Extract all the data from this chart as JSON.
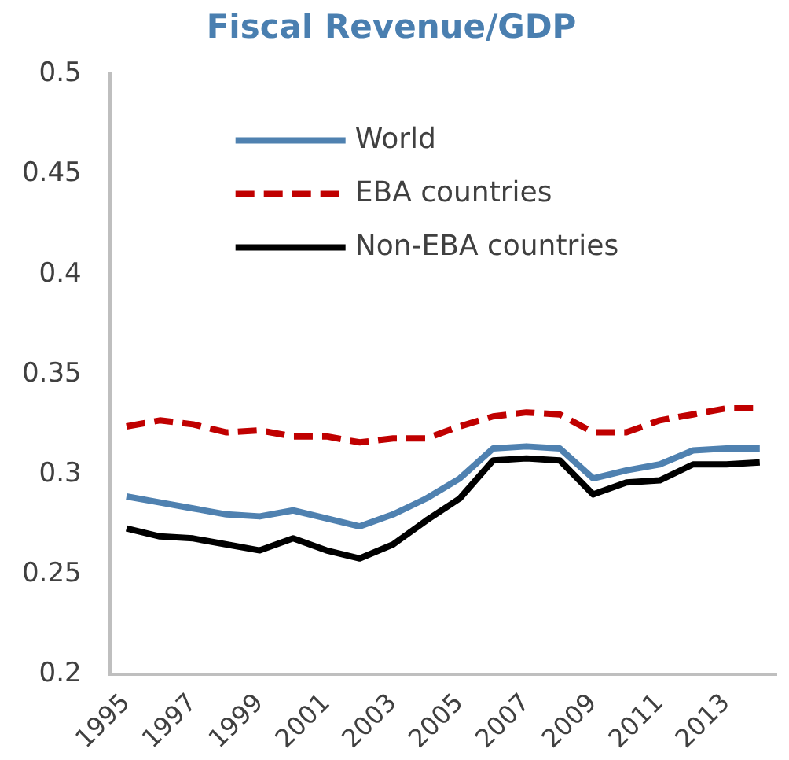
{
  "chart_data": {
    "type": "line",
    "title": "Fiscal Revenue/GDP",
    "categories": [
      "1995",
      null,
      "1997",
      null,
      "1999",
      null,
      "2001",
      null,
      "2003",
      null,
      "2005",
      null,
      "2007",
      null,
      "2009",
      null,
      "2011",
      null,
      "2013",
      null
    ],
    "series": [
      {
        "name": "World",
        "color": "#4f81b0",
        "values": [
          0.289,
          0.286,
          0.283,
          0.28,
          0.279,
          0.282,
          0.278,
          0.274,
          0.28,
          0.288,
          0.298,
          0.313,
          0.314,
          0.313,
          0.298,
          0.302,
          0.305,
          0.312,
          0.313,
          0.313
        ]
      },
      {
        "name": "EBA countries",
        "color": "#c00000",
        "line_style": "dashed",
        "values": [
          0.324,
          0.327,
          0.325,
          0.321,
          0.322,
          0.319,
          0.319,
          0.316,
          0.318,
          0.318,
          0.324,
          0.329,
          0.331,
          0.33,
          0.321,
          0.321,
          0.327,
          0.33,
          0.333,
          0.333
        ]
      },
      {
        "name": "Non-EBA countries",
        "color": "#000000",
        "values": [
          0.273,
          0.269,
          0.268,
          0.265,
          0.262,
          0.268,
          0.262,
          0.258,
          0.265,
          0.277,
          0.288,
          0.307,
          0.308,
          0.307,
          0.29,
          0.296,
          0.297,
          0.305,
          0.305,
          0.306
        ]
      }
    ],
    "ylim": [
      0.2,
      0.5
    ],
    "yticks": [
      0.2,
      0.25,
      0.3,
      0.35,
      0.4,
      0.45,
      0.5
    ],
    "grid": false,
    "legend": "top left",
    "line_style": "solid",
    "marker": "none"
  }
}
